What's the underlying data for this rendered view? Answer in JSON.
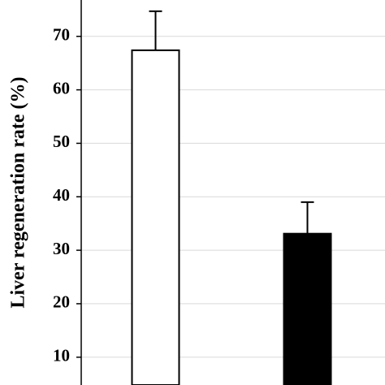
{
  "chart_data": {
    "type": "bar",
    "y_label": "Liver regeneration rate (%)",
    "categories": [
      null,
      null
    ],
    "values": [
      67.4,
      33.1
    ],
    "errors": [
      7.3,
      5.9
    ],
    "colors": [
      "#ffffff",
      "#000000"
    ],
    "ylim": [
      4.8,
      76.8
    ],
    "yticks": [
      10,
      20,
      30,
      40,
      50,
      60,
      70
    ],
    "grid": true
  }
}
